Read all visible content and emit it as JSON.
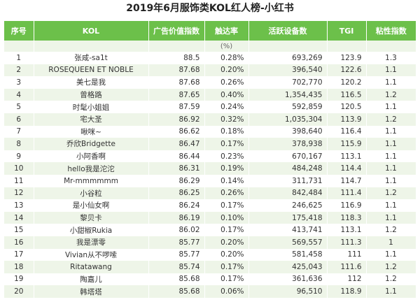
{
  "title": "2019年6月服饰类KOL红人榜-小红书",
  "headers": [
    "序号",
    "KOL",
    "广告价值指数",
    "触达率",
    "活跃设备数",
    "TGI",
    "粘性指数"
  ],
  "subheader": [
    "",
    "",
    "",
    "(%)",
    "",
    "",
    ""
  ],
  "rows": [
    [
      "1",
      "张咸-sa1t",
      "88.5",
      "0.28%",
      "693,269",
      "123.9",
      "1.3"
    ],
    [
      "2",
      "ROSEQUEEN ET NOBLE",
      "87.68",
      "0.20%",
      "396,540",
      "122.6",
      "1.1"
    ],
    [
      "3",
      "美七是我",
      "87.68",
      "0.26%",
      "702,770",
      "120.2",
      "1.1"
    ],
    [
      "4",
      "曾格路",
      "87.65",
      "0.40%",
      "1,354,435",
      "116.5",
      "1.2"
    ],
    [
      "5",
      "时髦小姐姐",
      "87.59",
      "0.24%",
      "592,859",
      "120.5",
      "1.1"
    ],
    [
      "6",
      "宅大圣",
      "86.92",
      "0.32%",
      "1,035,304",
      "113.9",
      "1.2"
    ],
    [
      "7",
      "啾咪~",
      "86.62",
      "0.18%",
      "398,640",
      "116.4",
      "1.1"
    ],
    [
      "8",
      "乔欣Bridgette",
      "86.47",
      "0.17%",
      "378,938",
      "115.9",
      "1.1"
    ],
    [
      "9",
      "小阿香啊",
      "86.44",
      "0.23%",
      "670,167",
      "113.1",
      "1.1"
    ],
    [
      "10",
      "hello我是沱沱",
      "86.31",
      "0.19%",
      "484,248",
      "114.4",
      "1.1"
    ],
    [
      "11",
      "Mr-mmmmmm",
      "86.29",
      "0.14%",
      "311,731",
      "114.7",
      "1.1"
    ],
    [
      "12",
      "小谷粒",
      "86.25",
      "0.26%",
      "842,484",
      "111.4",
      "1.2"
    ],
    [
      "13",
      "是小仙女啊",
      "86.24",
      "0.17%",
      "246,625",
      "116.9",
      "1.1"
    ],
    [
      "14",
      "黎贝卡",
      "86.19",
      "0.10%",
      "175,418",
      "118.3",
      "1.1"
    ],
    [
      "15",
      "小甜椒Rukia",
      "86.02",
      "0.17%",
      "413,741",
      "113.1",
      "1.2"
    ],
    [
      "16",
      "我是漂零",
      "85.77",
      "0.20%",
      "569,557",
      "111.3",
      "1"
    ],
    [
      "17",
      "Vivian从不啰嗦",
      "85.77",
      "0.20%",
      "581,458",
      "111",
      "1.1"
    ],
    [
      "18",
      "Ritatawang",
      "85.74",
      "0.17%",
      "425,043",
      "111.6",
      "1.2"
    ],
    [
      "19",
      "陶嘉儿",
      "85.68",
      "0.17%",
      "361,636",
      "112",
      "1.2"
    ],
    [
      "20",
      "韩塔塔",
      "85.68",
      "0.06%",
      "96,510",
      "118.9",
      "1.1"
    ]
  ]
}
